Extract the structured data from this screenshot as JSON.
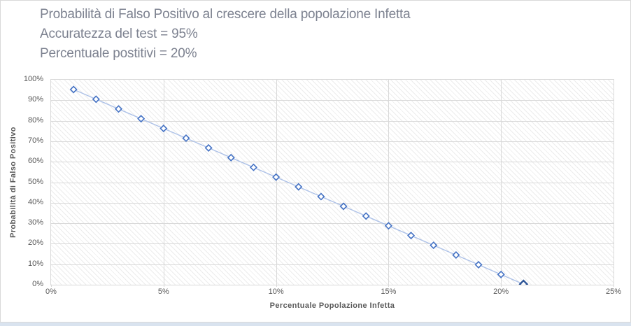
{
  "window": {
    "background": "#ffffff",
    "frame_border_color": "#d9d9d9",
    "worksheet_strip_color": "#d9e3ef"
  },
  "chart_data": {
    "type": "line",
    "title": "Probabilità di Falso Positivo al crescere della popolazione Infetta",
    "subtitle_lines": [
      "Accuratezza del test = 95%",
      "Percentuale postitivi = 20%"
    ],
    "xlabel": "Percentuale Popolazione Infetta",
    "ylabel": "Probabilità di Falso Positivo",
    "x_percent": [
      1,
      2,
      3,
      4,
      5,
      6,
      7,
      8,
      9,
      10,
      11,
      12,
      13,
      14,
      15,
      16,
      17,
      18,
      19,
      20,
      21
    ],
    "values_percent": [
      95.25,
      90.5,
      85.75,
      81,
      76.25,
      71.5,
      66.75,
      62,
      57.25,
      52.5,
      47.75,
      43,
      38.25,
      33.5,
      28.75,
      24,
      19.25,
      14.5,
      9.75,
      5,
      0.25
    ],
    "xlim": [
      0,
      25
    ],
    "ylim": [
      0,
      100
    ],
    "xticks": [
      "0%",
      "5%",
      "10%",
      "15%",
      "20%",
      "25%"
    ],
    "yticks": [
      "0%",
      "10%",
      "20%",
      "30%",
      "40%",
      "50%",
      "60%",
      "70%",
      "80%",
      "90%",
      "100%"
    ],
    "grid": true,
    "legend": "none",
    "marker": "open-diamond",
    "plot_background": "diagonal-hatch",
    "last_point_emphasized": true,
    "colors": {
      "marker_stroke": "#4472c4",
      "marker_fill": "#ffffff",
      "line": "#aec2e8",
      "last_marker_stroke": "#2e5597",
      "gridline": "#d9d9d9",
      "axis_text": "#595959",
      "title_text": "#7d8290"
    }
  }
}
